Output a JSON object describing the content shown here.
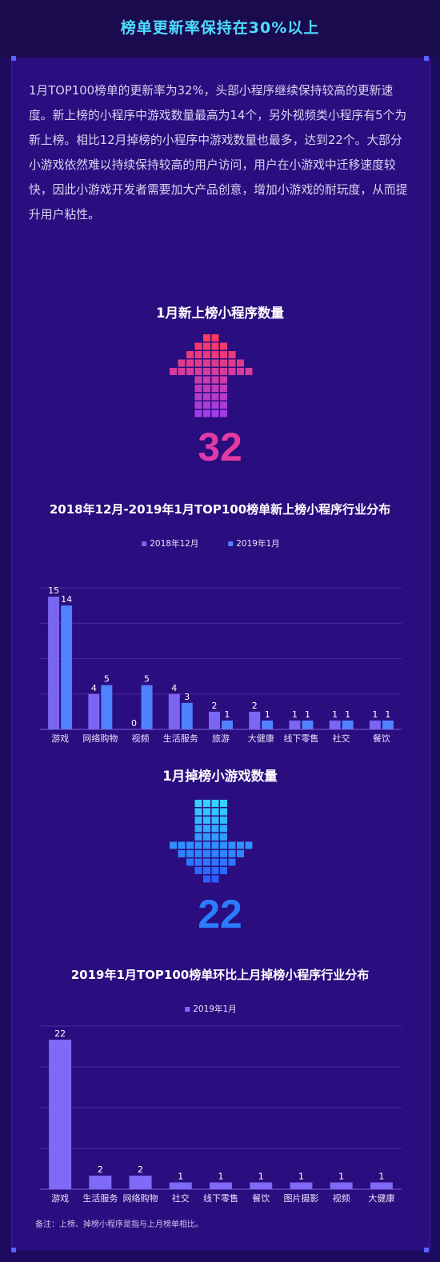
{
  "header": {
    "title": "榜单更新率保持在30%以上"
  },
  "intro": {
    "text": "1月TOP100榜单的更新率为32%，头部小程序继续保持较高的更新速度。新上榜的小程序中游戏数量最高为14个，另外视频类小程序有5个为新上榜。相比12月掉榜的小程序中游戏数量也最多，达到22个。大部分小游戏依然难以持续保持较高的用户访问，用户在小游戏中迁移速度较快，因此小游戏开发者需要加大产品创意，增加小游戏的耐玩度，从而提升用户粘性。"
  },
  "new_section": {
    "title": "1月新上榜小程序数量",
    "value": "32"
  },
  "drop_section": {
    "title": "1月掉榜小游戏数量",
    "value": "22"
  },
  "footnote": "备注：上榜、掉榜小程序是指与上月榜单相比。",
  "colors": {
    "series_dec": "#7a66f2",
    "series_jan": "#4f82ff",
    "drop": "#7e6af6",
    "title_accent": "#4ddcff"
  },
  "chart_data": [
    {
      "type": "bar",
      "title": "2018年12月-2019年1月TOP100榜单新上榜小程序行业分布",
      "categories": [
        "游戏",
        "网络购物",
        "视频",
        "生活服务",
        "旅游",
        "大健康",
        "线下零售",
        "社交",
        "餐饮"
      ],
      "series": [
        {
          "name": "2018年12月",
          "values": [
            15,
            4,
            0,
            4,
            2,
            2,
            1,
            1,
            1
          ]
        },
        {
          "name": "2019年1月",
          "values": [
            14,
            5,
            5,
            3,
            1,
            1,
            1,
            1,
            1
          ]
        }
      ],
      "ylim": [
        0,
        16
      ],
      "grid": true,
      "legend": "top"
    },
    {
      "type": "bar",
      "title": "2019年1月TOP100榜单环比上月掉榜小程序行业分布",
      "categories": [
        "游戏",
        "生活服务",
        "网络购物",
        "社交",
        "线下零售",
        "餐饮",
        "图片摄影",
        "视频",
        "大健康"
      ],
      "series": [
        {
          "name": "2019年1月",
          "values": [
            22,
            2,
            2,
            1,
            1,
            1,
            1,
            1,
            1
          ]
        }
      ],
      "ylim": [
        0,
        24
      ],
      "grid": true,
      "legend": "top"
    }
  ]
}
